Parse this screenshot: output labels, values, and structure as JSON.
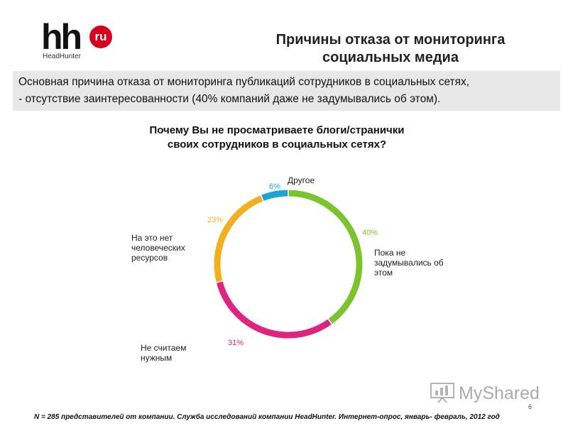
{
  "logo": {
    "brand": "hh",
    "badge": "ru",
    "subtitle": "HeadHunter"
  },
  "title": {
    "line1": "Причины отказа от мониторинга",
    "line2": "социальных медиа"
  },
  "summary": {
    "line1": "Основная причина отказа от мониторинга публикаций сотрудников в социальных сетях,",
    "line2": "- отсутствие заинтересованности (40% компаний даже не задумывались об этом)."
  },
  "question": {
    "line1": "Почему Вы не просматриваете блоги/странички",
    "line2": "своих сотрудников в социальных сетях?"
  },
  "chart_data": {
    "type": "pie",
    "style": "ring",
    "title": "Почему Вы не просматриваете блоги/странички своих сотрудников в социальных сетях?",
    "slices": [
      {
        "label": "Пока не задумывались об этом",
        "label_lines": [
          "Пока не",
          "задумывались об",
          "этом"
        ],
        "value": 40,
        "value_label": "40%",
        "color": "#7cc42e"
      },
      {
        "label": "Не считаем нужным",
        "label_lines": [
          "Не считаем",
          "нужным"
        ],
        "value": 31,
        "value_label": "31%",
        "color": "#e0237f"
      },
      {
        "label": "На это нет человеческих ресурсов",
        "label_lines": [
          "На это нет",
          "человеческих",
          "ресурсов"
        ],
        "value": 23,
        "value_label": "23%",
        "color": "#f2b01e"
      },
      {
        "label": "Другое",
        "label_lines": [
          "Другое"
        ],
        "value": 6,
        "value_label": "6%",
        "color": "#1ca4d6"
      }
    ]
  },
  "footnote": "N = 285 представителей от компании. Служба исследований компании HeadHunter. Интернет-опрос, январь- февраль, 2012 год",
  "page_number": "6",
  "watermark": {
    "text": "MyShared"
  }
}
